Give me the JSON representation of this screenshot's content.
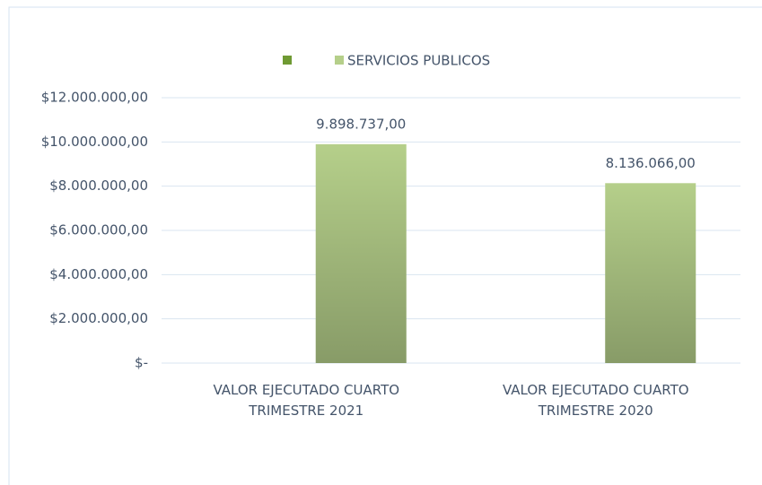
{
  "chart_data": {
    "type": "bar",
    "categories": [
      "VALOR EJECUTADO CUARTO TRIMESTRE 2021",
      "VALOR EJECUTADO CUARTO TRIMESTRE 2020"
    ],
    "series": [
      {
        "name": null,
        "color": "#6f9a33",
        "values": [
          null,
          null
        ]
      },
      {
        "name": "SERVICIOS PUBLICOS",
        "color": "#b5cf8a",
        "values": [
          9898737,
          8136066
        ],
        "value_labels": [
          "9.898.737,00",
          "8.136.066,00"
        ]
      }
    ],
    "ylim": [
      0,
      12000000
    ],
    "yticks": [
      {
        "value": 0,
        "label": "$-"
      },
      {
        "value": 2000000,
        "label": "$2.000.000,00"
      },
      {
        "value": 4000000,
        "label": "$4.000.000,00"
      },
      {
        "value": 6000000,
        "label": "$6.000.000,00"
      },
      {
        "value": 8000000,
        "label": "$8.000.000,00"
      },
      {
        "value": 10000000,
        "label": "$10.000.000,00"
      },
      {
        "value": 12000000,
        "label": "$12.000.000,00"
      }
    ],
    "grid": true,
    "legend": "top"
  }
}
